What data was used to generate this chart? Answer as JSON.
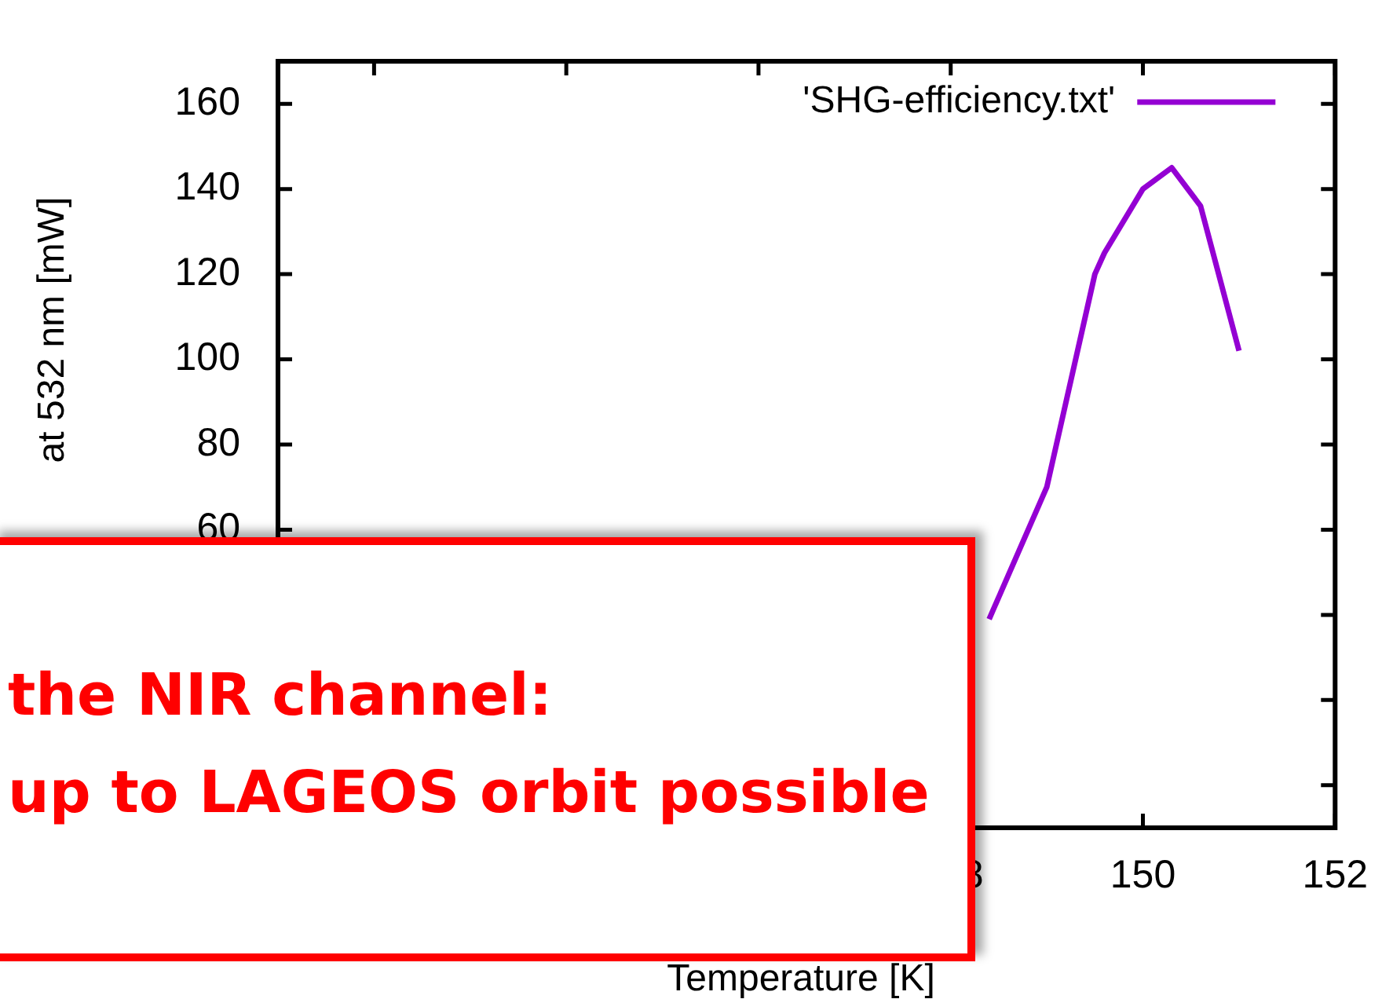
{
  "chart_data": {
    "type": "line",
    "xlabel": "Temperature [K]",
    "ylabel": "at 532 nm [mW]",
    "x": [
      148.4,
      149,
      149.5,
      149.6,
      150,
      150.3,
      150.6,
      151
    ],
    "series": [
      {
        "name": "'SHG-efficiency.txt'",
        "color": "#9400d3",
        "values": [
          39,
          70,
          120,
          125,
          140,
          145,
          136,
          102
        ]
      }
    ],
    "xlim": [
      141,
      152
    ],
    "xticks": [
      {
        "value": 142,
        "label": null
      },
      {
        "value": 144,
        "label": null
      },
      {
        "value": 146,
        "label": null
      },
      148,
      150,
      152
    ],
    "ylim": [
      -10,
      170
    ],
    "yticks": [
      {
        "value": 0,
        "label": null
      },
      {
        "value": 20,
        "label": null
      },
      {
        "value": 40,
        "label": null
      },
      60,
      80,
      100,
      120,
      140,
      160
    ],
    "legend": "top right",
    "marker": "none",
    "line_style": "solid",
    "annotations": [
      "the NIR channel:",
      "up to LAGEOS orbit possible"
    ]
  }
}
